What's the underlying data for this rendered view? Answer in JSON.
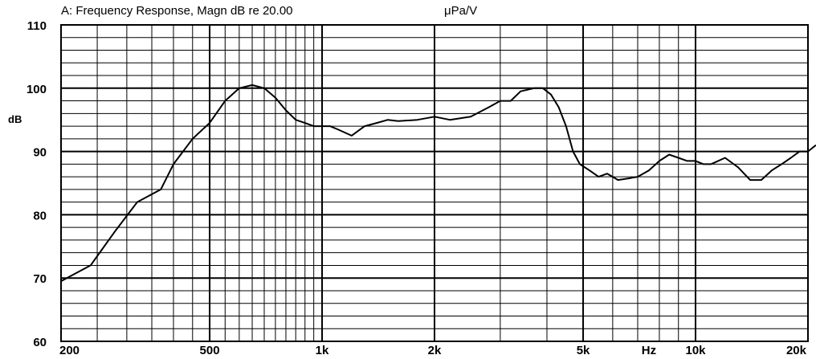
{
  "chart_data": {
    "type": "line",
    "title": "A: Frequency Response, Magn dB re 20.00",
    "title_unit": "μPa/V",
    "ylabel": "dB",
    "xlabel": "Hz",
    "x_scale": "log",
    "xlim": [
      200,
      20000
    ],
    "ylim": [
      60,
      110
    ],
    "grid": true,
    "y_ticks": [
      "60",
      "70",
      "80",
      "90",
      "100",
      "110"
    ],
    "x_ticks": [
      {
        "value": 200,
        "label": "200"
      },
      {
        "value": 500,
        "label": "500"
      },
      {
        "value": 1000,
        "label": "1k"
      },
      {
        "value": 2000,
        "label": "2k"
      },
      {
        "value": 5000,
        "label": "5k"
      },
      {
        "value": 10000,
        "label": "10k"
      },
      {
        "value": 20000,
        "label": "20k"
      }
    ],
    "hz_label_at": 7500,
    "series": [
      {
        "name": "",
        "x": [
          200,
          240,
          280,
          320,
          370,
          400,
          450,
          500,
          550,
          600,
          650,
          700,
          750,
          800,
          850,
          900,
          950,
          1000,
          1050,
          1100,
          1150,
          1200,
          1300,
          1400,
          1500,
          1600,
          1800,
          2000,
          2200,
          2500,
          2800,
          3000,
          3200,
          3400,
          3700,
          3900,
          4100,
          4300,
          4500,
          4700,
          4900,
          5200,
          5500,
          5800,
          6200,
          6700,
          7000,
          7500,
          8000,
          8500,
          9000,
          9500,
          10000,
          10500,
          11000,
          12000,
          13000,
          14000,
          15000,
          16000,
          17000,
          18000,
          19000,
          20000,
          21000
        ],
        "y": [
          69.5,
          72,
          77.5,
          82,
          84,
          88,
          92,
          94.5,
          98,
          100,
          100.5,
          100,
          98.5,
          96.5,
          95,
          94.5,
          94,
          94,
          94,
          93.5,
          93,
          92.5,
          94,
          94.5,
          95,
          94.8,
          95,
          95.5,
          95,
          95.5,
          97,
          98,
          98,
          99.5,
          100,
          100,
          99,
          97,
          94,
          90,
          88,
          87,
          86,
          86.5,
          85.5,
          85.8,
          86,
          87,
          88.5,
          89.5,
          89,
          88.5,
          88.5,
          88,
          88,
          89,
          87.5,
          85.5,
          85.5,
          87,
          88,
          89,
          90,
          90,
          91
        ]
      }
    ]
  }
}
